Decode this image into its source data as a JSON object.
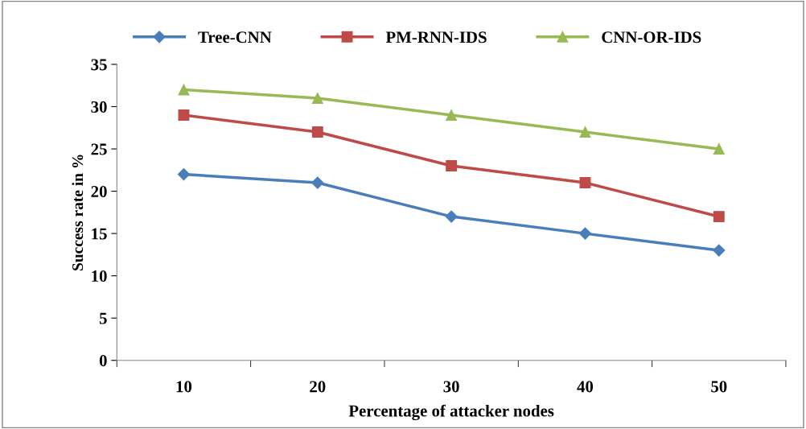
{
  "chart_data": {
    "type": "line",
    "xlabel": "Percentage of attacker nodes",
    "ylabel": "Success rate in %",
    "categories": [
      "10",
      "20",
      "30",
      "40",
      "50"
    ],
    "series": [
      {
        "name": "Tree-CNN",
        "color": "#4a7ebb",
        "marker": "diamond",
        "values": [
          22,
          21,
          17,
          15,
          13
        ]
      },
      {
        "name": "PM-RNN-IDS",
        "color": "#be4b48",
        "marker": "square",
        "values": [
          29,
          27,
          23,
          21,
          17
        ]
      },
      {
        "name": "CNN-OR-IDS",
        "color": "#98b954",
        "marker": "triangle",
        "values": [
          32,
          31,
          29,
          27,
          25
        ]
      }
    ],
    "ylim": [
      0,
      35
    ],
    "yticks": [
      0,
      5,
      10,
      15,
      20,
      25,
      30,
      35
    ],
    "grid": false,
    "legend": "top",
    "line_style": "solid"
  }
}
